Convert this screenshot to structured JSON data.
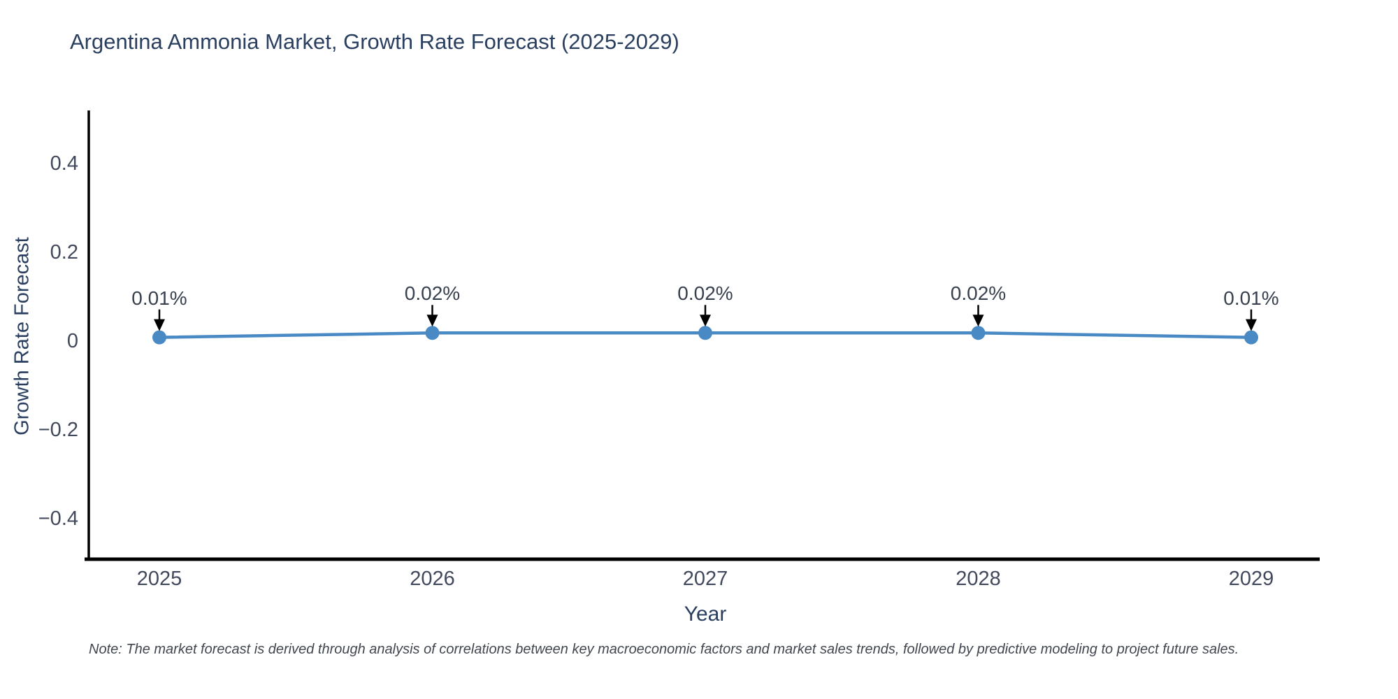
{
  "chart": {
    "title": "Argentina Ammonia Market, Growth Rate Forecast (2025-2029)",
    "ylabel": "Growth Rate Forecast",
    "xlabel": "Year",
    "note": "Note: The market forecast is derived through analysis of correlations between key macroeconomic factors and market sales trends, followed by predictive modeling to project future sales."
  },
  "chart_data": {
    "type": "line",
    "title": "Argentina Ammonia Market, Growth Rate Forecast (2025-2029)",
    "xlabel": "Year",
    "ylabel": "Growth Rate Forecast",
    "x": [
      2025,
      2026,
      2027,
      2028,
      2029
    ],
    "y": [
      0.01,
      0.02,
      0.02,
      0.02,
      0.01
    ],
    "point_labels": [
      "0.01%",
      "0.02%",
      "0.02%",
      "0.02%",
      "0.01%"
    ],
    "xtick_labels": [
      "2025",
      "2026",
      "2027",
      "2028",
      "2029"
    ],
    "ytick_values": [
      0.4,
      0.2,
      0,
      -0.2,
      -0.4
    ],
    "ytick_labels": [
      "0.4",
      "0.2",
      "0",
      "−0.2",
      "−0.4"
    ],
    "ylim": [
      -0.5,
      0.52
    ],
    "grid": false,
    "legend_position": "none",
    "annotations_have_arrows": true,
    "colors": {
      "line": "#4a8ac4",
      "marker": "#4a8ac4",
      "axis": "#000000",
      "arrow": "#000000",
      "title_text": "#2a3f5f",
      "tick_text": "#42495c",
      "note_text": "#42474f"
    }
  }
}
